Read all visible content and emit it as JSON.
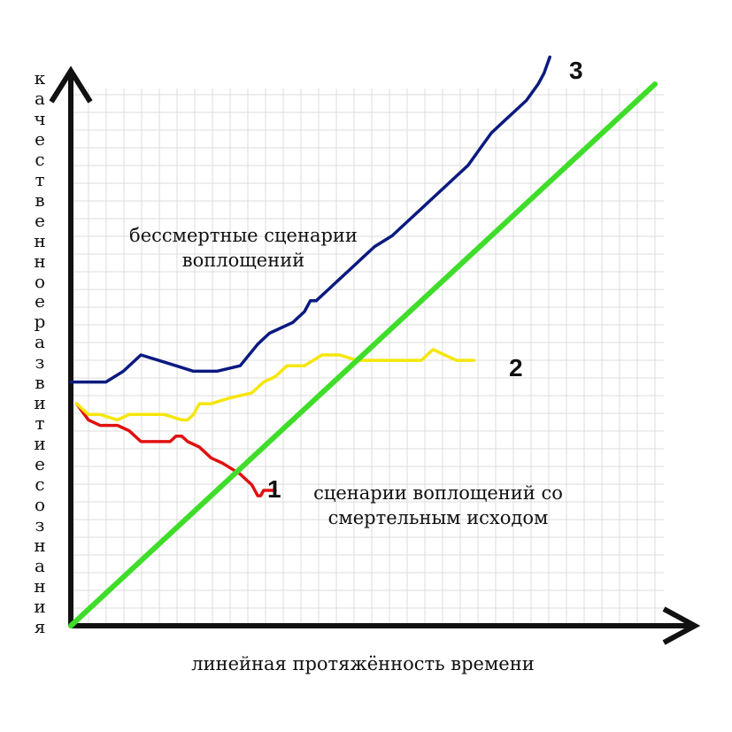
{
  "chart_data": {
    "type": "line",
    "xlabel": "линейная протяжённость времени",
    "ylabel": "качественное развитие сознания",
    "xlim": [
      0,
      100
    ],
    "ylim": [
      0,
      100
    ],
    "grid": true,
    "annotations": [
      {
        "text_line1": "бессмертные сценарии",
        "text_line2": "воплощений",
        "region": "upper-left"
      },
      {
        "text_line1": "сценарии воплощений со",
        "text_line2": "смертельным исходом",
        "region": "lower-right"
      }
    ],
    "series": [
      {
        "name": "1",
        "color": "#e01010",
        "x": [
          1,
          3,
          5,
          8,
          10,
          12,
          14,
          17,
          18,
          19,
          20,
          22,
          24,
          26,
          29,
          30,
          31,
          32,
          32.5,
          33,
          35
        ],
        "y": [
          41,
          38,
          37,
          37,
          36,
          34,
          34,
          34,
          35,
          35,
          34,
          33,
          31,
          30,
          28,
          27,
          26,
          24,
          24,
          25,
          25
        ]
      },
      {
        "name": "2",
        "color": "#f5e60a",
        "x": [
          1,
          3,
          5,
          8,
          10,
          13,
          16,
          19,
          20,
          21,
          22,
          24,
          27,
          31,
          33,
          35,
          37,
          40,
          43,
          46,
          49,
          52,
          55,
          58,
          60,
          61,
          62,
          64,
          66,
          69
        ],
        "y": [
          41,
          39,
          39,
          38,
          39,
          39,
          39,
          38,
          38,
          39,
          41,
          41,
          42,
          43,
          45,
          46,
          48,
          48,
          50,
          50,
          49,
          49,
          49,
          49,
          49,
          50,
          51,
          50,
          49,
          49
        ]
      },
      {
        "name": "3",
        "color": "#0b1a80",
        "x": [
          0,
          3,
          6,
          9,
          12,
          15,
          18,
          21,
          25,
          29,
          32,
          33,
          34,
          36,
          38,
          40,
          41,
          42,
          44,
          46,
          48,
          49,
          50,
          52,
          55,
          57,
          58,
          60,
          62,
          64,
          66,
          68,
          70,
          72,
          74,
          76,
          78,
          80,
          81,
          82
        ],
        "y": [
          45,
          45,
          45,
          47,
          50,
          49,
          48,
          47,
          47,
          48,
          52,
          53,
          54,
          55,
          56,
          58,
          60,
          60,
          62,
          64,
          66,
          67,
          68,
          70,
          72,
          74,
          75,
          77,
          79,
          81,
          83,
          85,
          88,
          91,
          93,
          95,
          97,
          100,
          102,
          105
        ]
      },
      {
        "name": "",
        "color": "#3fdd2a",
        "x": [
          0,
          100
        ],
        "y": [
          0,
          100
        ]
      }
    ],
    "series_labels": [
      "1",
      "2",
      "3"
    ]
  }
}
